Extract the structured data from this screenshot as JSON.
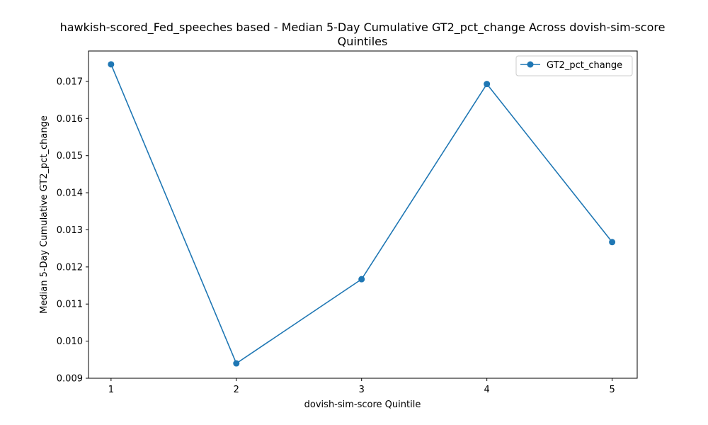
{
  "chart_data": {
    "type": "line",
    "title_line1": "hawkish-scored_Fed_speeches based - Median 5-Day Cumulative GT2_pct_change Across dovish-sim-score",
    "title_line2": "Quintiles",
    "xlabel": "dovish-sim-score Quintile",
    "ylabel": "Median 5-Day Cumulative GT2_pct_change",
    "x": [
      1,
      2,
      3,
      4,
      5
    ],
    "x_tick_labels": [
      "1",
      "2",
      "3",
      "4",
      "5"
    ],
    "xlim": [
      0.82,
      5.2
    ],
    "ylim": [
      0.009,
      0.01782
    ],
    "y_ticks": [
      0.009,
      0.01,
      0.011,
      0.012,
      0.013,
      0.014,
      0.015,
      0.016,
      0.017
    ],
    "y_tick_labels": [
      "0.009",
      "0.010",
      "0.011",
      "0.012",
      "0.013",
      "0.014",
      "0.015",
      "0.016",
      "0.017"
    ],
    "series": [
      {
        "name": "GT2_pct_change",
        "color": "#1f77b4",
        "marker": "circle",
        "values": [
          0.01746,
          0.0094,
          0.01167,
          0.01693,
          0.01267
        ]
      }
    ],
    "grid": false,
    "legend": "top-right"
  }
}
